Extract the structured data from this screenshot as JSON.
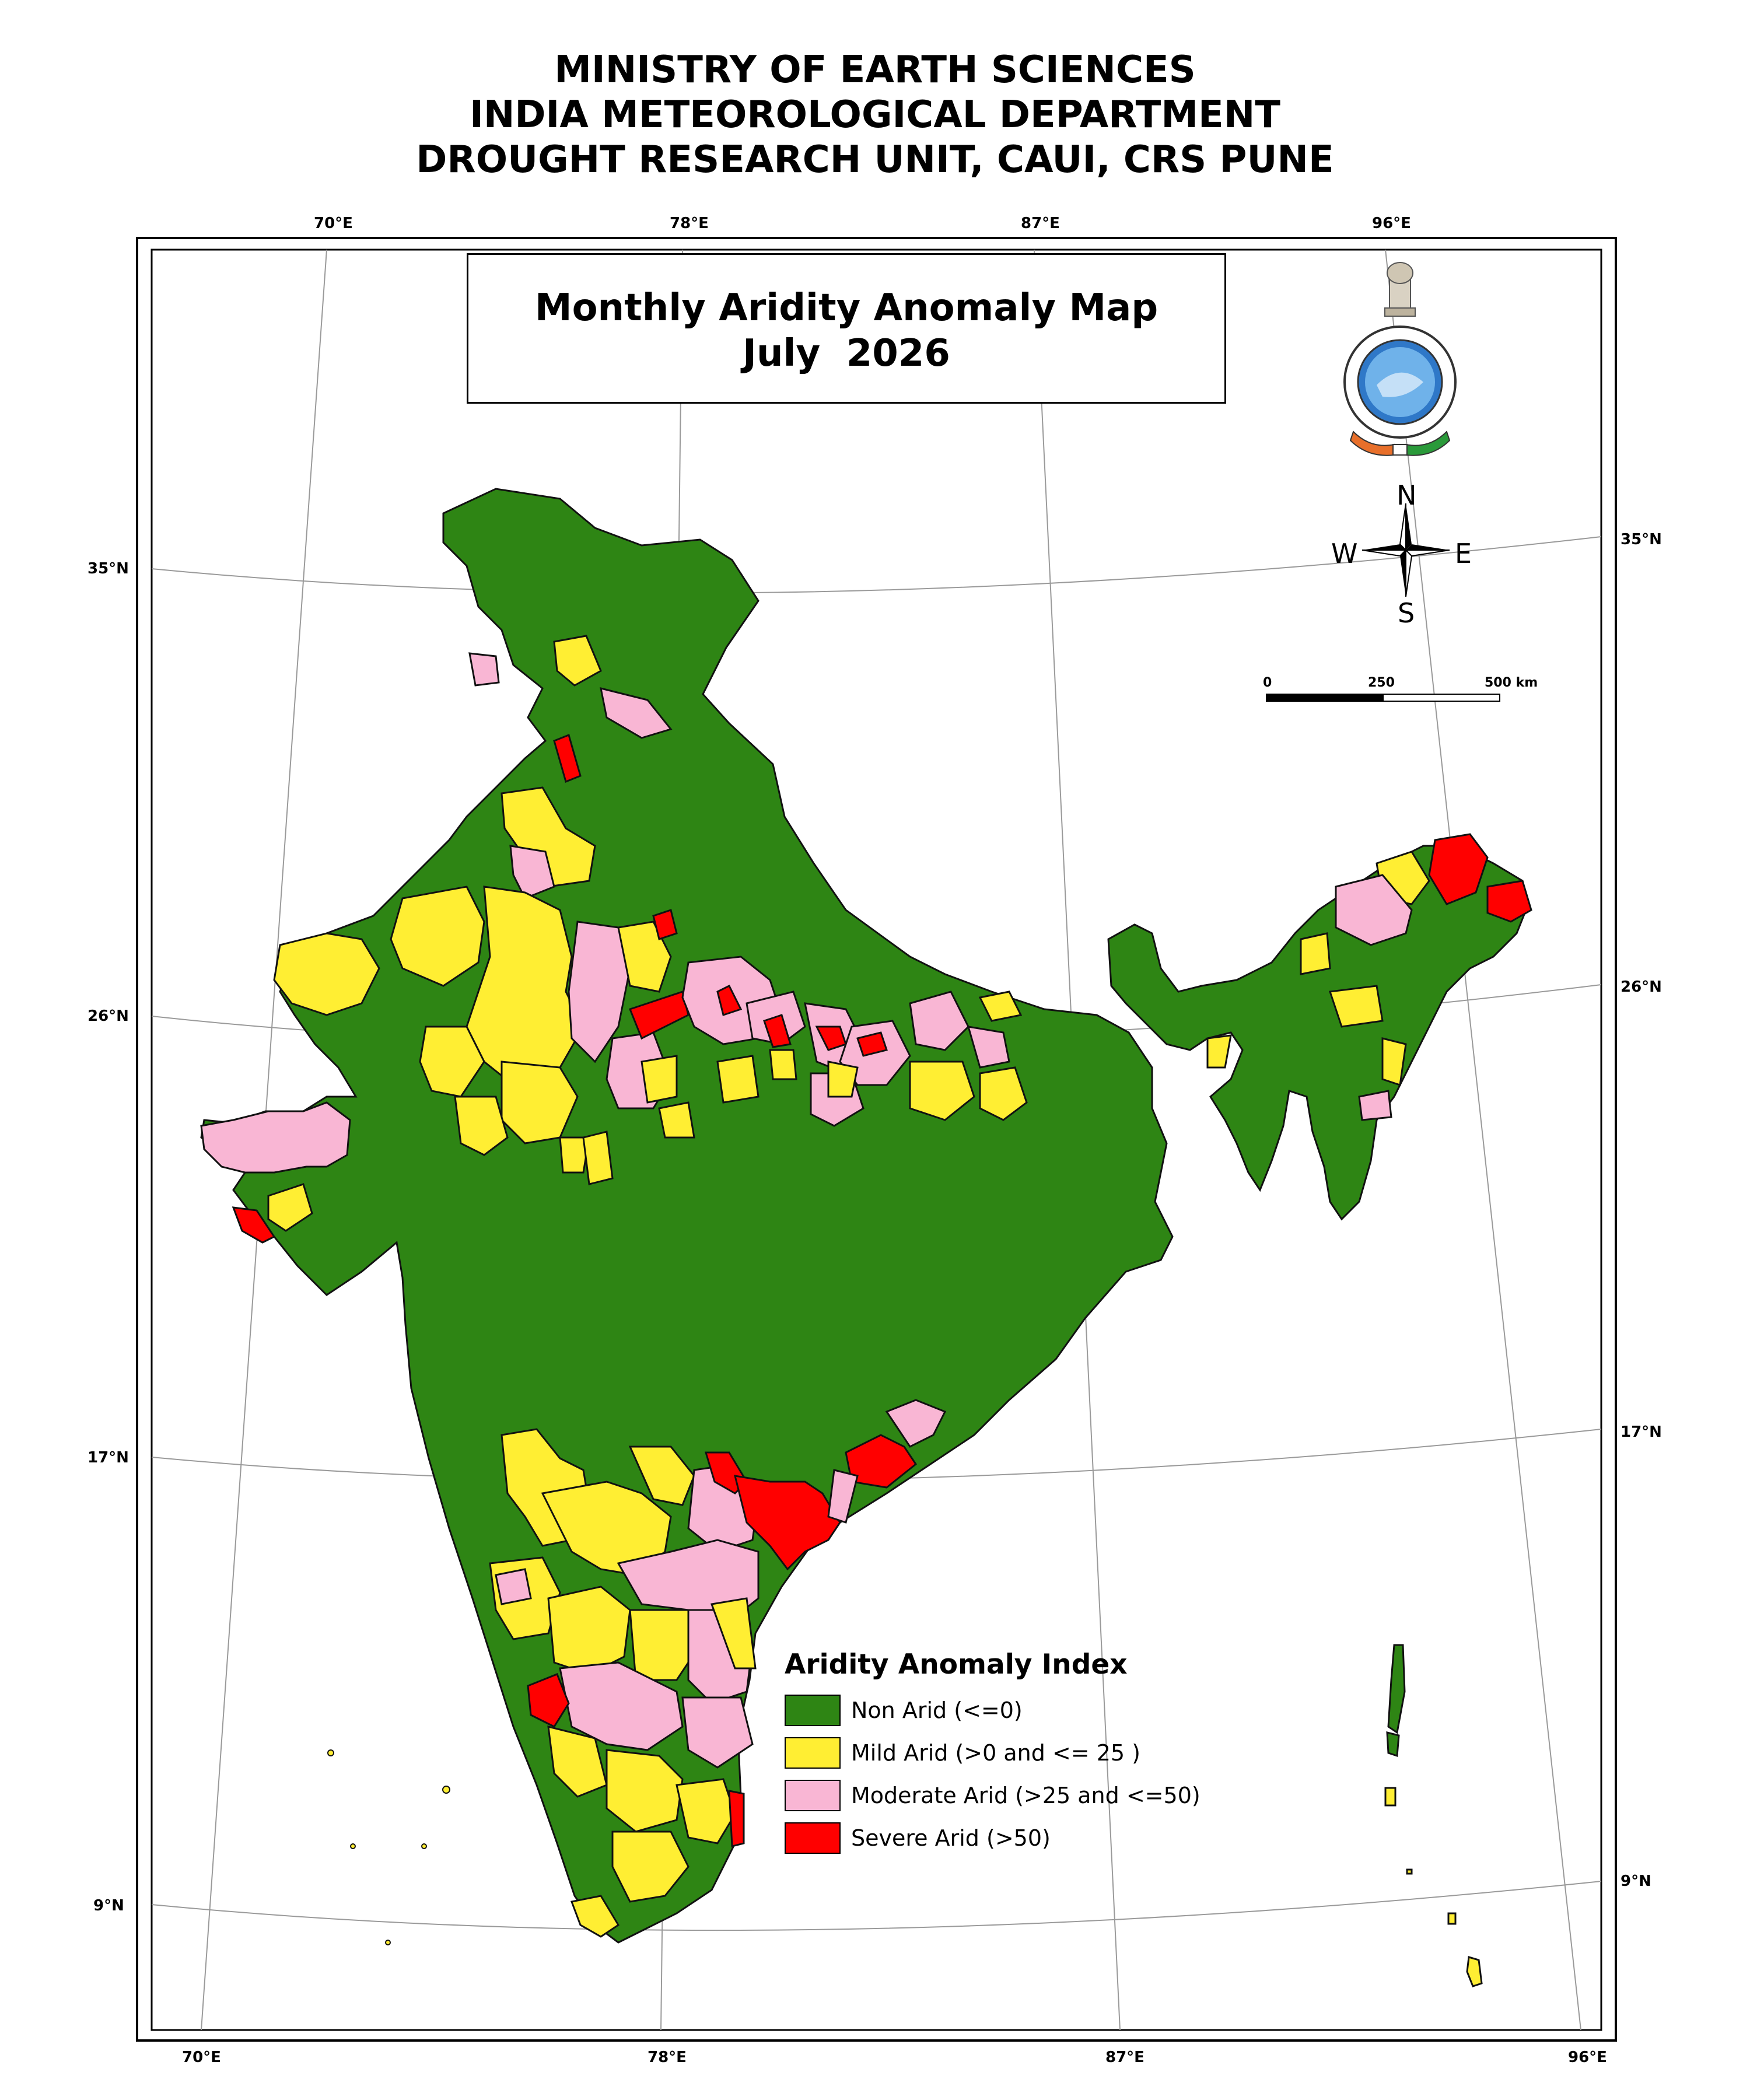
{
  "header": {
    "line1": "MINISTRY OF EARTH SCIENCES",
    "line2": "INDIA METEOROLOGICAL DEPARTMENT",
    "line3": "DROUGHT RESEARCH UNIT, CAUI, CRS PUNE"
  },
  "map": {
    "title": "Monthly Aridity Anomaly Map",
    "period": "July  2026",
    "top_longitude_labels": [
      "70°E",
      "78°E",
      "87°E",
      "96°E"
    ],
    "bottom_longitude_labels": [
      "70°E",
      "78°E",
      "87°E",
      "96°E"
    ],
    "left_latitude_labels": [
      "35°N",
      "26°N",
      "17°N",
      "9°N"
    ],
    "right_latitude_labels": [
      "35°N",
      "26°N",
      "17°N",
      "9°N"
    ]
  },
  "compass": {
    "n": "N",
    "s": "S",
    "e": "E",
    "w": "W"
  },
  "scale_bar": {
    "labels": [
      "0",
      "250",
      "500 km"
    ]
  },
  "legend": {
    "title": "Aridity Anomaly Index",
    "items": [
      {
        "label": "Non Arid (<=0)",
        "color": "#2e8514"
      },
      {
        "label": "Mild Arid (>0 and <= 25 )",
        "color": "#ffee33"
      },
      {
        "label": "Moderate Arid (>25 and <=50)",
        "color": "#f9b6d4"
      },
      {
        "label": "Severe Arid (>50)",
        "color": "#ff0000"
      }
    ]
  },
  "colors": {
    "non_arid": "#2e8514",
    "mild_arid": "#ffee33",
    "moderate_arid": "#f9b6d4",
    "severe_arid": "#ff0000",
    "graticule": "#9a9a9a",
    "frame": "#000000"
  },
  "logo": {
    "name": "imd-emblem"
  }
}
